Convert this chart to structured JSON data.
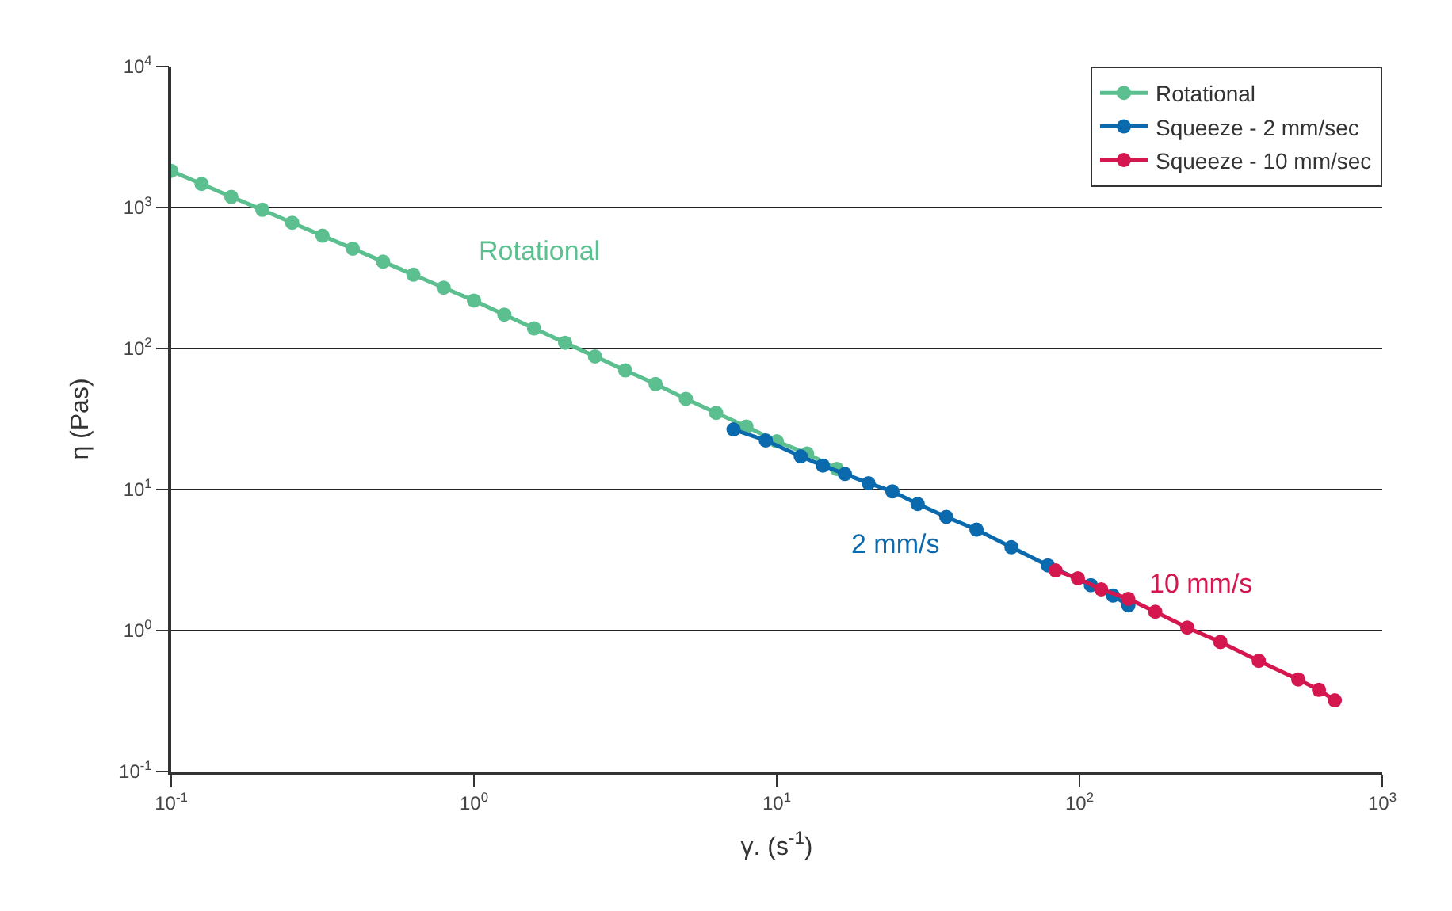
{
  "chart_data": {
    "type": "line",
    "xlabel": "γ. (s$^{-1}$)",
    "ylabel": "η (Pas)",
    "log": "xy",
    "grid": "y",
    "legend": "top right",
    "marker": "circle",
    "line_style": "solid",
    "xlim": [
      0.1,
      1000
    ],
    "ylim": [
      0.1,
      10000
    ],
    "xticks": [
      {
        "value": 0.1,
        "label": "10$^{-1}$"
      },
      {
        "value": 1,
        "label": "10$^{0}$"
      },
      {
        "value": 10,
        "label": "10$^{1}$"
      },
      {
        "value": 100,
        "label": "10$^{2}$"
      },
      {
        "value": 1000,
        "label": "10$^{3}$"
      }
    ],
    "yticks": [
      {
        "value": 0.1,
        "label": "10$^{-1}$"
      },
      {
        "value": 1,
        "label": "10$^{0}$"
      },
      {
        "value": 10,
        "label": "10$^{1}$"
      },
      {
        "value": 100,
        "label": "10$^{2}$"
      },
      {
        "value": 1000,
        "label": "10$^{3}$"
      },
      {
        "value": 10000,
        "label": "10$^{4}$"
      }
    ],
    "series": [
      {
        "name": "Rotational",
        "color": "#5cbf8f",
        "x": [
          0.1,
          0.126,
          0.158,
          0.2,
          0.251,
          0.316,
          0.398,
          0.501,
          0.631,
          0.794,
          1,
          1.26,
          1.58,
          2,
          2.51,
          3.16,
          3.98,
          5.01,
          6.31,
          7.94,
          10,
          12.6,
          15.8
        ],
        "values": [
          1820,
          1470,
          1190,
          964,
          780,
          631,
          511,
          413,
          334,
          270,
          219,
          174,
          139,
          110,
          88,
          70,
          56,
          44,
          35,
          28,
          22,
          18,
          14
        ]
      },
      {
        "name": "Squeeze - 2 mm/sec",
        "color": "#0a6aad",
        "x": [
          7.2,
          9.2,
          12,
          14.2,
          16.8,
          20.1,
          24.1,
          29.2,
          36.3,
          45.7,
          59.6,
          78.6,
          109,
          129,
          145
        ],
        "values": [
          26.7,
          22.3,
          17.2,
          14.8,
          12.9,
          11.1,
          9.7,
          7.9,
          6.4,
          5.2,
          3.9,
          2.9,
          2.1,
          1.77,
          1.51
        ]
      },
      {
        "name": "Squeeze - 10 mm/sec",
        "color": "#d4174f",
        "x": [
          83.4,
          98.8,
          118,
          145,
          178,
          227,
          292,
          391,
          528,
          618,
          697
        ],
        "values": [
          2.67,
          2.35,
          1.96,
          1.68,
          1.36,
          1.05,
          0.83,
          0.61,
          0.45,
          0.38,
          0.32
        ]
      }
    ],
    "annotations": [
      "Rotational",
      "2 mm/s",
      "10 mm/s"
    ]
  }
}
